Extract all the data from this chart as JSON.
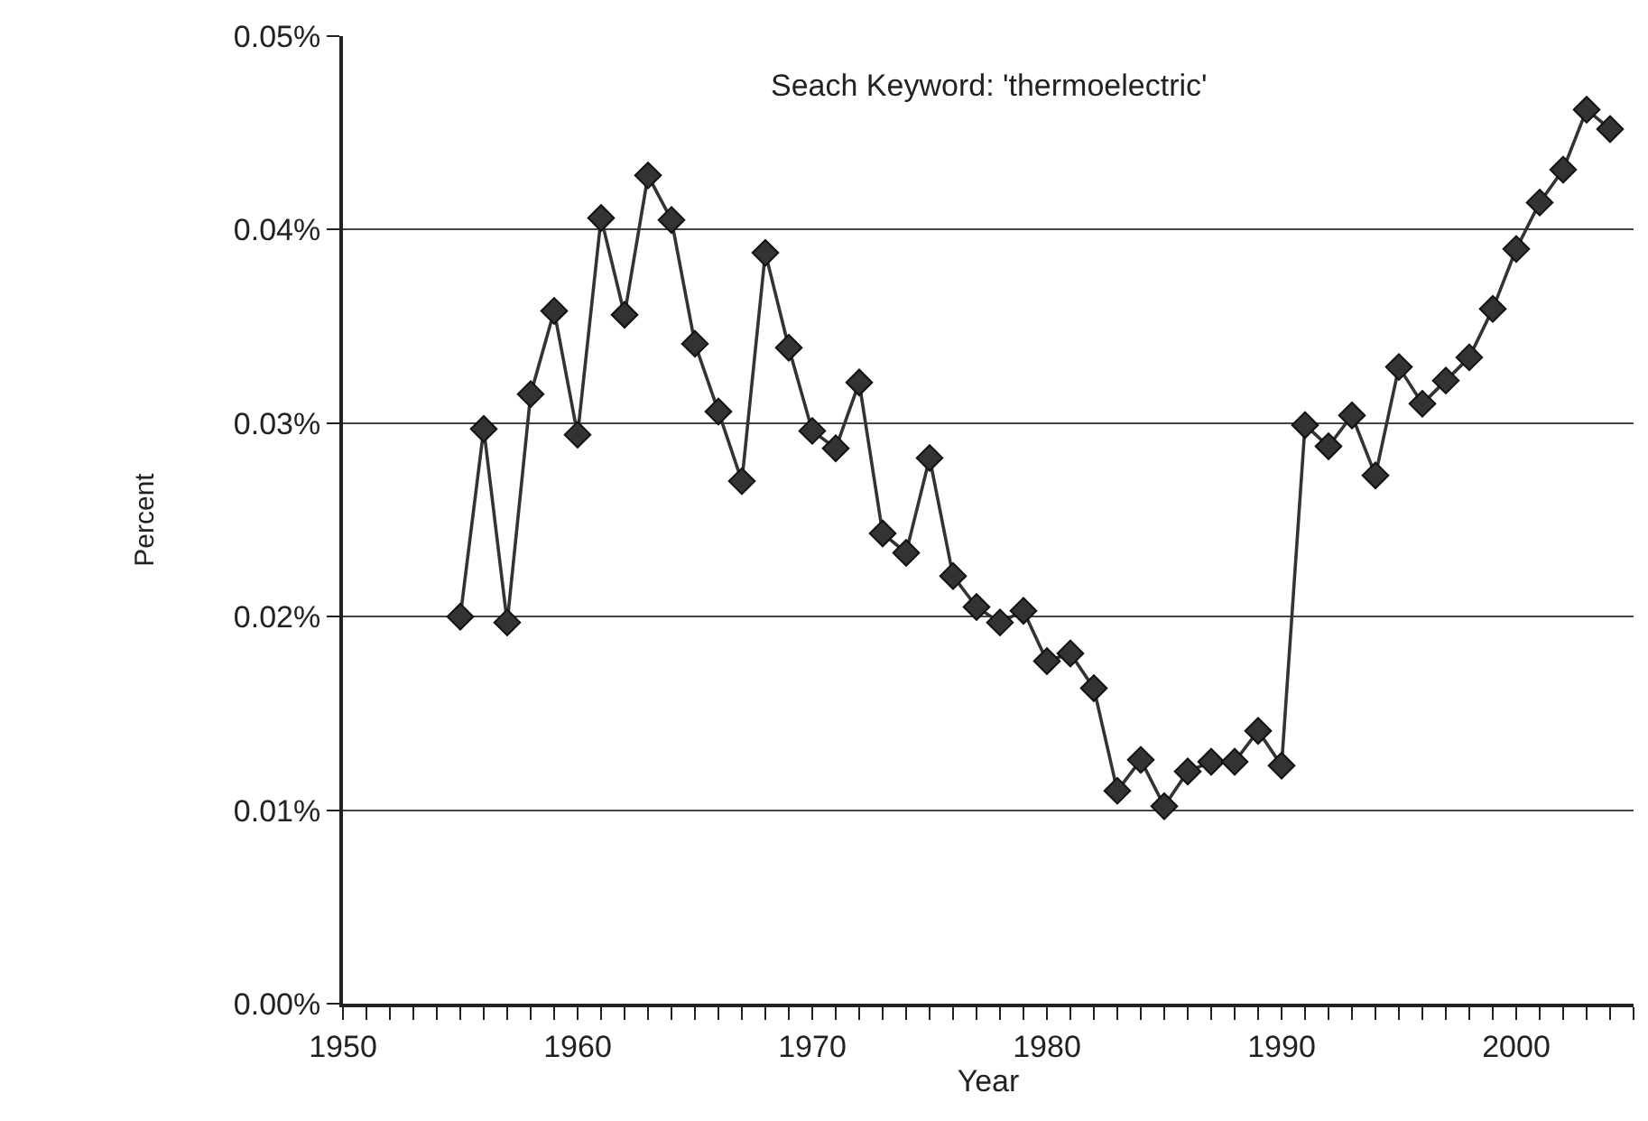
{
  "chart_data": {
    "type": "line",
    "xlabel": "Year",
    "ylabel": "Percent",
    "annotations": [
      "Seach Keyword: 'thermoelectric'"
    ],
    "x": [
      1955,
      1956,
      1957,
      1958,
      1959,
      1960,
      1961,
      1962,
      1963,
      1964,
      1965,
      1966,
      1967,
      1968,
      1969,
      1970,
      1971,
      1972,
      1973,
      1974,
      1975,
      1976,
      1977,
      1978,
      1979,
      1980,
      1981,
      1982,
      1983,
      1984,
      1985,
      1986,
      1987,
      1988,
      1989,
      1990,
      1991,
      1992,
      1993,
      1994,
      1995,
      1996,
      1997,
      1998,
      1999,
      2000,
      2001,
      2002,
      2003,
      2004
    ],
    "series": [
      {
        "color": "#333333",
        "values": [
          0.02,
          0.0297,
          0.0197,
          0.0315,
          0.0358,
          0.0294,
          0.0406,
          0.0356,
          0.0428,
          0.0405,
          0.0341,
          0.0306,
          0.027,
          0.0388,
          0.0339,
          0.0296,
          0.0287,
          0.0321,
          0.0243,
          0.0233,
          0.0282,
          0.0221,
          0.0205,
          0.0197,
          0.0203,
          0.0177,
          0.0181,
          0.0163,
          0.011,
          0.0126,
          0.0102,
          0.012,
          0.0125,
          0.0125,
          0.0141,
          0.0123,
          0.0299,
          0.0288,
          0.0304,
          0.0273,
          0.0329,
          0.031,
          0.0322,
          0.0334,
          0.0359,
          0.039,
          0.0414,
          0.0431,
          0.0462,
          0.0452
        ]
      }
    ],
    "xlim": [
      1950,
      2005
    ],
    "xticks": [
      1950,
      {
        "value": 1951,
        "label": null
      },
      {
        "value": 1952,
        "label": null
      },
      {
        "value": 1953,
        "label": null
      },
      {
        "value": 1954,
        "label": null
      },
      {
        "value": 1955,
        "label": null
      },
      {
        "value": 1956,
        "label": null
      },
      {
        "value": 1957,
        "label": null
      },
      {
        "value": 1958,
        "label": null
      },
      {
        "value": 1959,
        "label": null
      },
      1960,
      {
        "value": 1961,
        "label": null
      },
      {
        "value": 1962,
        "label": null
      },
      {
        "value": 1963,
        "label": null
      },
      {
        "value": 1964,
        "label": null
      },
      {
        "value": 1965,
        "label": null
      },
      {
        "value": 1966,
        "label": null
      },
      {
        "value": 1967,
        "label": null
      },
      {
        "value": 1968,
        "label": null
      },
      {
        "value": 1969,
        "label": null
      },
      1970,
      {
        "value": 1971,
        "label": null
      },
      {
        "value": 1972,
        "label": null
      },
      {
        "value": 1973,
        "label": null
      },
      {
        "value": 1974,
        "label": null
      },
      {
        "value": 1975,
        "label": null
      },
      {
        "value": 1976,
        "label": null
      },
      {
        "value": 1977,
        "label": null
      },
      {
        "value": 1978,
        "label": null
      },
      {
        "value": 1979,
        "label": null
      },
      1980,
      {
        "value": 1981,
        "label": null
      },
      {
        "value": 1982,
        "label": null
      },
      {
        "value": 1983,
        "label": null
      },
      {
        "value": 1984,
        "label": null
      },
      {
        "value": 1985,
        "label": null
      },
      {
        "value": 1986,
        "label": null
      },
      {
        "value": 1987,
        "label": null
      },
      {
        "value": 1988,
        "label": null
      },
      {
        "value": 1989,
        "label": null
      },
      1990,
      {
        "value": 1991,
        "label": null
      },
      {
        "value": 1992,
        "label": null
      },
      {
        "value": 1993,
        "label": null
      },
      {
        "value": 1994,
        "label": null
      },
      {
        "value": 1995,
        "label": null
      },
      {
        "value": 1996,
        "label": null
      },
      {
        "value": 1997,
        "label": null
      },
      {
        "value": 1998,
        "label": null
      },
      {
        "value": 1999,
        "label": null
      },
      2000,
      {
        "value": 2001,
        "label": null
      },
      {
        "value": 2002,
        "label": null
      },
      {
        "value": 2003,
        "label": null
      },
      {
        "value": 2004,
        "label": null
      },
      {
        "value": 2005,
        "label": null
      }
    ],
    "ylim": [
      0,
      0.05
    ],
    "yticks": [
      {
        "value": 0,
        "label": "0.00%"
      },
      {
        "value": 0.01,
        "label": "0.01%"
      },
      {
        "value": 0.02,
        "label": "0.02%"
      },
      {
        "value": 0.03,
        "label": "0.03%"
      },
      {
        "value": 0.04,
        "label": "0.04%"
      },
      {
        "value": 0.05,
        "label": "0.05%"
      }
    ],
    "grid": "y",
    "marker": "diamond",
    "line_style": "solid"
  }
}
